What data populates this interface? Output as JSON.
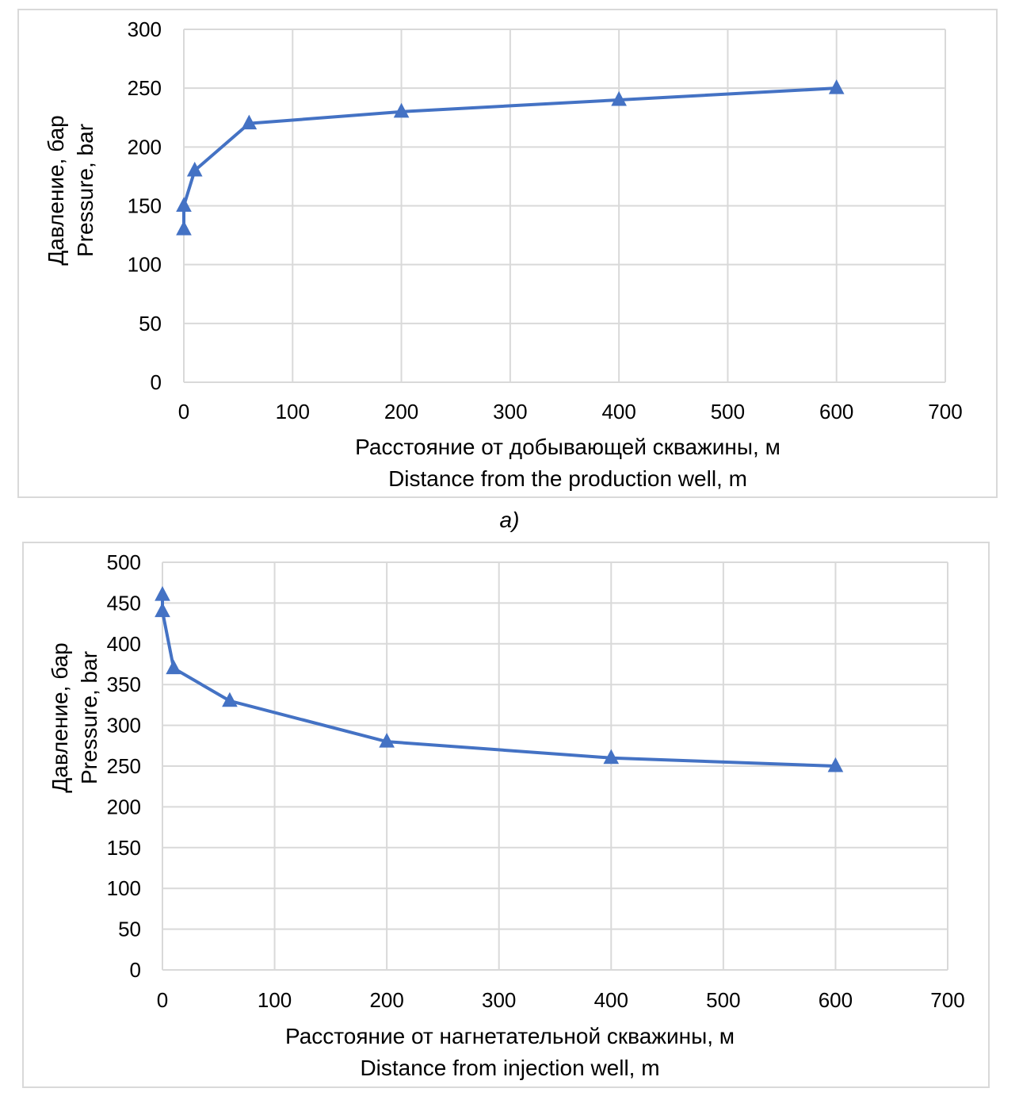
{
  "chart_data": [
    {
      "id": "a",
      "type": "line",
      "title": "",
      "xlabel": [
        "Расстояние от добывающей скважины, м",
        "Distance from the production well, m"
      ],
      "ylabel": [
        "Давление, бар",
        "Pressure, bar"
      ],
      "xlim": [
        0,
        700
      ],
      "ylim": [
        0,
        300
      ],
      "xticks": [
        0,
        100,
        200,
        300,
        400,
        500,
        600,
        700
      ],
      "yticks": [
        0,
        50,
        100,
        150,
        200,
        250,
        300
      ],
      "grid": true,
      "series": [
        {
          "name": "pressure",
          "marker": "triangle",
          "color": "#4472c4",
          "x": [
            0,
            0,
            10,
            60,
            200,
            400,
            600
          ],
          "y": [
            130,
            150,
            180,
            220,
            230,
            240,
            250
          ]
        }
      ]
    },
    {
      "id": "b",
      "type": "line",
      "title": "",
      "xlabel": [
        "Расстояние от нагнетательной скважины, м",
        "Distance from injection well, m"
      ],
      "ylabel": [
        "Давление, бар",
        "Pressure, bar"
      ],
      "xlim": [
        0,
        700
      ],
      "ylim": [
        0,
        500
      ],
      "xticks": [
        0,
        100,
        200,
        300,
        400,
        500,
        600,
        700
      ],
      "yticks": [
        0,
        50,
        100,
        150,
        200,
        250,
        300,
        350,
        400,
        450,
        500
      ],
      "grid": true,
      "series": [
        {
          "name": "pressure",
          "marker": "triangle",
          "color": "#4472c4",
          "x": [
            0,
            0,
            10,
            60,
            200,
            400,
            600
          ],
          "y": [
            460,
            440,
            370,
            330,
            280,
            260,
            250
          ]
        }
      ]
    }
  ],
  "caption_a": "а)",
  "colors": {
    "series": "#4472c4",
    "grid": "#d9d9d9",
    "frame": "#d9d9d9"
  }
}
